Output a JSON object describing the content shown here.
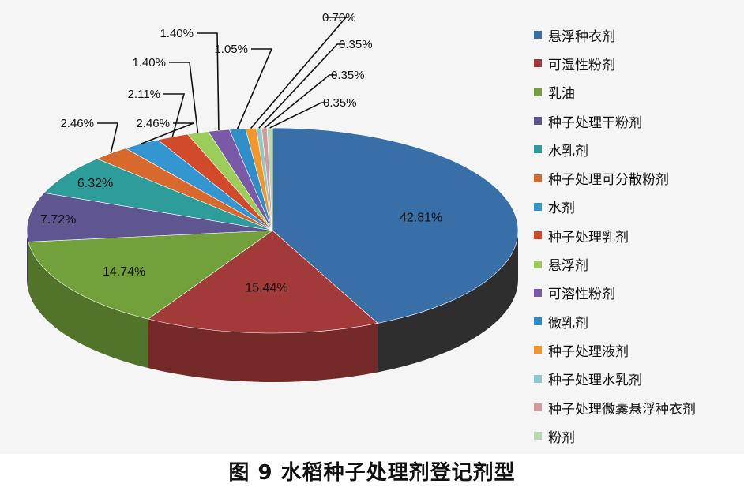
{
  "caption": "图 9 水稻种子处理剂登记剂型",
  "chart_data": {
    "type": "pie",
    "style": "3d-exploded",
    "legend_position": "right",
    "slices": [
      {
        "label": "悬浮种衣剂",
        "value": 42.81,
        "value_label": "42.81%",
        "color": "#386fa6"
      },
      {
        "label": "可湿性粉剂",
        "value": 15.44,
        "value_label": "15.44%",
        "color": "#a33a3a"
      },
      {
        "label": "乳油",
        "value": 14.74,
        "value_label": "14.74%",
        "color": "#72a03a"
      },
      {
        "label": "种子处理干粉剂",
        "value": 7.72,
        "value_label": "7.72%",
        "color": "#5e5591"
      },
      {
        "label": "水乳剂",
        "value": 6.32,
        "value_label": "6.32%",
        "color": "#2e9c9a"
      },
      {
        "label": "种子处理可分散粉剂",
        "value": 2.46,
        "value_label": "2.46%",
        "color": "#d8692c"
      },
      {
        "label": "水剂",
        "value": 2.46,
        "value_label": "2.46%",
        "color": "#3396d1"
      },
      {
        "label": "种子处理乳剂",
        "value": 2.11,
        "value_label": "2.11%",
        "color": "#d14a2a"
      },
      {
        "label": "悬浮剂",
        "value": 1.4,
        "value_label": "1.40%",
        "color": "#9ccc5a"
      },
      {
        "label": "可溶性粉剂",
        "value": 1.4,
        "value_label": "1.40%",
        "color": "#7a5aa8"
      },
      {
        "label": "微乳剂",
        "value": 1.05,
        "value_label": "1.05%",
        "color": "#2f8dc8"
      },
      {
        "label": "种子处理液剂",
        "value": 0.7,
        "value_label": "0.70%",
        "color": "#f3962a"
      },
      {
        "label": "种子处理水乳剂",
        "value": 0.35,
        "value_label": "0.35%",
        "color": "#8fc9cf"
      },
      {
        "label": "种子处理微囊悬浮种衣剂",
        "value": 0.35,
        "value_label": "0.35%",
        "color": "#d49a9a"
      },
      {
        "label": "粉剂",
        "value": 0.35,
        "value_label": "0.35%",
        "color": "#b9d9b0"
      }
    ]
  }
}
